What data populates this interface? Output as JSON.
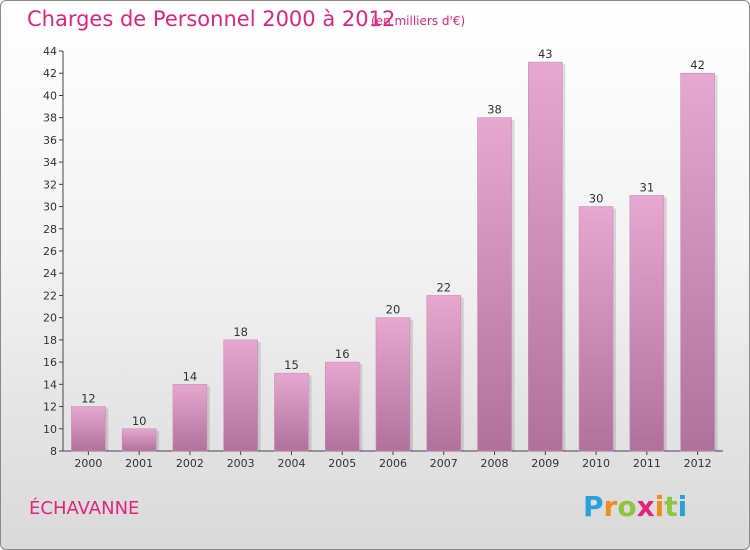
{
  "header": {
    "title": "Charges de Personnel 2000 à 2012",
    "subtitle": "(en milliers d'€)"
  },
  "footer": {
    "commune": "ÉCHAVANNE",
    "logo": {
      "letters": [
        "P",
        "r",
        "o",
        "x",
        "i",
        "t",
        "i"
      ],
      "colors": [
        "#2aa1d8",
        "#f08b1d",
        "#8cc63f",
        "#e0257b",
        "#f08b1d",
        "#8cc63f",
        "#2aa1d8"
      ]
    }
  },
  "colors": {
    "bar_top": "#e6a8cf",
    "bar_bottom": "#b0729b",
    "title": "#e0257b"
  },
  "chart_data": {
    "type": "bar",
    "categories": [
      "2000",
      "2001",
      "2002",
      "2003",
      "2004",
      "2005",
      "2006",
      "2007",
      "2008",
      "2009",
      "2010",
      "2011",
      "2012"
    ],
    "values": [
      12,
      10,
      14,
      18,
      15,
      16,
      20,
      22,
      38,
      43,
      30,
      31,
      42
    ],
    "ylim": [
      8,
      44
    ],
    "yticks": [
      8,
      10,
      12,
      14,
      16,
      18,
      20,
      22,
      24,
      26,
      28,
      30,
      32,
      34,
      36,
      38,
      40,
      42,
      44
    ],
    "grid": false,
    "data_labels": true
  }
}
